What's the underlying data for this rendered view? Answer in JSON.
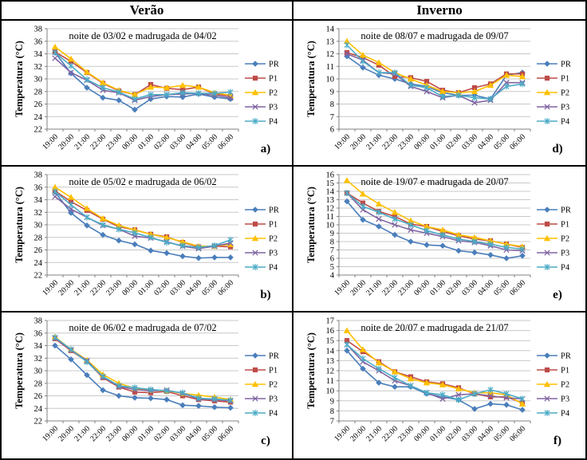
{
  "header": {
    "left": "Verão",
    "right": "Inverno"
  },
  "series_styles": [
    {
      "name": "PR",
      "color": "#4A7EBB",
      "marker": "diamond"
    },
    {
      "name": "P1",
      "color": "#BE4B48",
      "marker": "square"
    },
    {
      "name": "P2",
      "color": "#FFC000",
      "marker": "triangle"
    },
    {
      "name": "P3",
      "color": "#8064A2",
      "marker": "x"
    },
    {
      "name": "P4",
      "color": "#4BACC6",
      "marker": "asterisk"
    }
  ],
  "chart_data": [
    {
      "id": "a",
      "letter": "a)",
      "type": "line",
      "title": "noite de 03/02 e madrugada de 04/02",
      "ylabel": "Temperatura (°C)",
      "xlabel": "",
      "ylim": [
        22,
        38
      ],
      "ystep": 2,
      "grid": "horizontal",
      "legend_position": "right",
      "categories": [
        "19:00",
        "20:00",
        "21:00",
        "22:00",
        "23:00",
        "00:00",
        "01:00",
        "02:00",
        "03:00",
        "04:00",
        "05:00",
        "06:00"
      ],
      "series": [
        {
          "name": "PR",
          "values": [
            34.2,
            30.9,
            28.6,
            27.0,
            26.6,
            25.1,
            26.8,
            27.2,
            27.1,
            27.6,
            27.1,
            26.8
          ]
        },
        {
          "name": "P1",
          "values": [
            34.3,
            32.8,
            31.0,
            29.3,
            28.1,
            27.5,
            29.1,
            28.5,
            28.3,
            28.7,
            27.6,
            27.3
          ]
        },
        {
          "name": "P2",
          "values": [
            35.1,
            33.2,
            31.1,
            29.4,
            28.2,
            27.5,
            28.7,
            28.6,
            29.0,
            28.7,
            27.8,
            27.4
          ]
        },
        {
          "name": "P3",
          "values": [
            33.3,
            31.0,
            29.8,
            28.2,
            27.8,
            26.6,
            27.2,
            27.5,
            27.6,
            27.7,
            27.4,
            27.0
          ]
        },
        {
          "name": "P4",
          "values": [
            34.2,
            32.1,
            29.9,
            28.6,
            27.9,
            26.8,
            27.5,
            27.5,
            27.8,
            27.7,
            27.7,
            27.9
          ]
        }
      ]
    },
    {
      "id": "d",
      "letter": "d)",
      "type": "line",
      "title": "noite de 08/07 e madrugada de 09/07",
      "ylabel": "Temperatura (°C)",
      "xlabel": "",
      "ylim": [
        6,
        14
      ],
      "ystep": 1,
      "grid": "horizontal",
      "legend_position": "right",
      "categories": [
        "19:00",
        "20:00",
        "21:00",
        "22:00",
        "23:00",
        "00:00",
        "01:00",
        "02:00",
        "03:00",
        "04:00",
        "05:00",
        "06:00"
      ],
      "series": [
        {
          "name": "PR",
          "values": [
            11.8,
            10.9,
            10.3,
            10.0,
            9.6,
            9.4,
            8.9,
            8.7,
            8.7,
            8.4,
            10.3,
            10.5
          ]
        },
        {
          "name": "P1",
          "values": [
            12.1,
            11.7,
            11.1,
            10.2,
            10.1,
            9.8,
            9.1,
            8.9,
            9.3,
            9.6,
            10.4,
            10.4
          ]
        },
        {
          "name": "P2",
          "values": [
            13.0,
            11.9,
            11.3,
            10.5,
            10.0,
            9.5,
            9.0,
            8.9,
            9.0,
            9.5,
            10.3,
            10.2
          ]
        },
        {
          "name": "P3",
          "values": [
            12.0,
            11.5,
            10.5,
            10.4,
            9.4,
            9.0,
            8.5,
            8.7,
            8.1,
            8.3,
            9.7,
            9.7
          ]
        },
        {
          "name": "P4",
          "values": [
            12.7,
            11.4,
            10.5,
            10.5,
            9.5,
            9.3,
            8.6,
            8.7,
            8.5,
            8.4,
            9.4,
            9.6
          ]
        }
      ]
    },
    {
      "id": "b",
      "letter": "b)",
      "type": "line",
      "title": "noite de 05/02 e madrugada de 06/02",
      "ylabel": "Temperatura (°C)",
      "xlabel": "",
      "ylim": [
        22,
        38
      ],
      "ystep": 2,
      "grid": "horizontal",
      "legend_position": "right",
      "categories": [
        "19:00",
        "20:00",
        "21:00",
        "22:00",
        "23:00",
        "00:00",
        "01:00",
        "02:00",
        "03:00",
        "04:00",
        "05:00",
        "06:00"
      ],
      "series": [
        {
          "name": "PR",
          "values": [
            35.2,
            31.9,
            29.9,
            28.4,
            27.5,
            26.9,
            25.9,
            25.5,
            25.0,
            24.7,
            24.8,
            24.8
          ]
        },
        {
          "name": "P1",
          "values": [
            35.4,
            33.7,
            32.3,
            30.9,
            29.7,
            29.2,
            28.5,
            28.1,
            27.2,
            26.5,
            26.6,
            26.5
          ]
        },
        {
          "name": "P2",
          "values": [
            36.0,
            34.4,
            32.6,
            31.0,
            29.9,
            29.2,
            28.5,
            28.0,
            27.3,
            26.6,
            26.6,
            26.9
          ]
        },
        {
          "name": "P3",
          "values": [
            34.5,
            32.5,
            31.2,
            29.9,
            29.3,
            28.2,
            27.9,
            27.3,
            26.6,
            26.2,
            26.6,
            27.1
          ]
        },
        {
          "name": "P4",
          "values": [
            35.3,
            33.2,
            31.2,
            30.0,
            29.3,
            28.7,
            28.0,
            27.2,
            26.7,
            26.4,
            26.7,
            27.6
          ]
        }
      ]
    },
    {
      "id": "e",
      "letter": "e)",
      "type": "line",
      "title": "noite de 19/07 e madrugada de 20/07",
      "ylabel": "Temperatura (°C)",
      "xlabel": "",
      "ylim": [
        4,
        16
      ],
      "ystep": 1,
      "grid": "horizontal",
      "legend_position": "right",
      "categories": [
        "19:00",
        "20:00",
        "21:00",
        "22:00",
        "23:00",
        "00:00",
        "01:00",
        "02:00",
        "03:00",
        "04:00",
        "05:00",
        "06:00"
      ],
      "series": [
        {
          "name": "PR",
          "values": [
            12.8,
            10.6,
            9.8,
            8.8,
            8.0,
            7.6,
            7.5,
            6.9,
            6.7,
            6.4,
            6.0,
            6.3
          ]
        },
        {
          "name": "P1",
          "values": [
            13.8,
            12.6,
            11.6,
            11.0,
            10.1,
            9.8,
            9.2,
            8.7,
            8.3,
            8.1,
            7.7,
            7.3
          ]
        },
        {
          "name": "P2",
          "values": [
            15.3,
            13.7,
            12.5,
            11.5,
            10.5,
            9.8,
            9.4,
            8.8,
            8.5,
            8.1,
            7.7,
            7.4
          ]
        },
        {
          "name": "P3",
          "values": [
            13.8,
            11.8,
            10.7,
            10.0,
            9.4,
            9.0,
            8.6,
            8.1,
            7.9,
            7.5,
            7.0,
            6.9
          ]
        },
        {
          "name": "P4",
          "values": [
            13.8,
            12.2,
            11.5,
            10.7,
            10.0,
            9.3,
            8.8,
            8.3,
            8.0,
            7.7,
            7.3,
            7.1
          ]
        }
      ]
    },
    {
      "id": "c",
      "letter": "c)",
      "type": "line",
      "title": "noite de 06/02 e madrugada de 07/02",
      "ylabel": "Temperatura (°C)",
      "xlabel": "",
      "ylim": [
        22,
        38
      ],
      "ystep": 2,
      "grid": "horizontal",
      "legend_position": "right",
      "categories": [
        "19:00",
        "20:00",
        "21:00",
        "22:00",
        "23:00",
        "00:00",
        "01:00",
        "02:00",
        "03:00",
        "04:00",
        "05:00",
        "06:00"
      ],
      "series": [
        {
          "name": "PR",
          "values": [
            34.0,
            31.8,
            29.3,
            26.9,
            26.0,
            25.7,
            25.6,
            25.4,
            24.5,
            24.4,
            24.2,
            24.1
          ]
        },
        {
          "name": "P1",
          "values": [
            35.1,
            33.2,
            31.5,
            28.9,
            27.4,
            26.6,
            26.5,
            26.7,
            26.0,
            25.4,
            25.2,
            25.0
          ]
        },
        {
          "name": "P2",
          "values": [
            35.4,
            33.4,
            31.7,
            29.4,
            28.0,
            27.2,
            26.9,
            26.8,
            26.4,
            26.1,
            25.8,
            25.4
          ]
        },
        {
          "name": "P3",
          "values": [
            35.2,
            33.3,
            31.6,
            29.0,
            27.5,
            27.0,
            26.8,
            26.9,
            26.4,
            25.5,
            25.4,
            25.2
          ]
        },
        {
          "name": "P4",
          "values": [
            35.3,
            33.4,
            31.4,
            29.1,
            27.6,
            27.3,
            27.0,
            26.8,
            26.5,
            25.6,
            25.5,
            25.3
          ]
        }
      ]
    },
    {
      "id": "f",
      "letter": "f)",
      "type": "line",
      "title": "noite de 20/07 e madrugada de 21/07",
      "ylabel": "Temperatura (°C)",
      "xlabel": "",
      "ylim": [
        7,
        17
      ],
      "ystep": 1,
      "grid": "horizontal",
      "legend_position": "right",
      "categories": [
        "19:00",
        "20:00",
        "21:00",
        "22:00",
        "23:00",
        "00:00",
        "01:00",
        "02:00",
        "03:00",
        "04:00",
        "05:00",
        "06:00"
      ],
      "series": [
        {
          "name": "PR",
          "values": [
            14.0,
            12.2,
            10.8,
            10.4,
            10.4,
            9.7,
            9.4,
            9.1,
            8.2,
            8.7,
            8.6,
            8.1
          ]
        },
        {
          "name": "P1",
          "values": [
            15.0,
            13.9,
            12.9,
            11.9,
            11.4,
            10.9,
            10.7,
            10.3,
            9.7,
            9.4,
            9.4,
            8.8
          ]
        },
        {
          "name": "P2",
          "values": [
            16.0,
            14.1,
            12.8,
            11.9,
            11.2,
            10.8,
            10.6,
            10.2,
            9.8,
            9.8,
            9.6,
            8.7
          ]
        },
        {
          "name": "P3",
          "values": [
            14.6,
            12.9,
            12.0,
            11.0,
            10.5,
            9.8,
            9.2,
            9.6,
            9.7,
            9.5,
            9.3,
            9.2
          ]
        },
        {
          "name": "P4",
          "values": [
            14.6,
            13.2,
            12.2,
            11.3,
            10.5,
            9.8,
            9.6,
            9.1,
            9.7,
            10.1,
            9.7,
            9.2
          ]
        }
      ]
    }
  ]
}
